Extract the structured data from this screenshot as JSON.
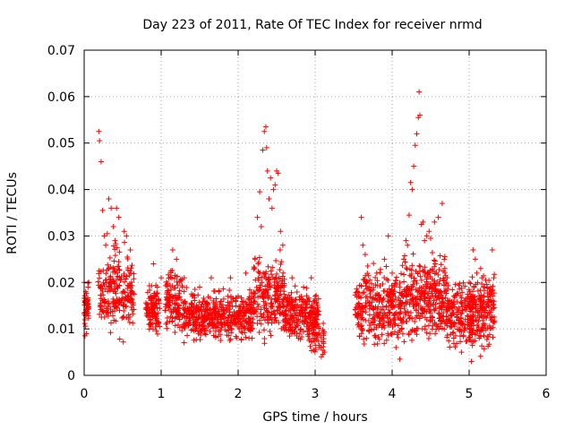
{
  "chart_data": {
    "type": "scatter",
    "title": "Day 223 of 2011, Rate Of TEC Index for receiver nrmd",
    "xlabel": "GPS time / hours",
    "ylabel": "ROTI / TECUs",
    "xlim": [
      0,
      6
    ],
    "ylim": [
      0,
      0.07
    ],
    "xticks": [
      0,
      1,
      2,
      3,
      4,
      5,
      6
    ],
    "yticks": [
      0,
      0.01,
      0.02,
      0.03,
      0.04,
      0.05,
      0.06,
      0.07
    ],
    "xtick_labels": [
      "0",
      "1",
      "2",
      "3",
      "4",
      "5",
      "6"
    ],
    "ytick_labels": [
      "0",
      "0.01",
      "0.02",
      "0.03",
      "0.04",
      "0.05",
      "0.06",
      "0.07"
    ],
    "grid": true,
    "marker": "+",
    "color": "#ff0000",
    "series": [
      {
        "name": "ROTI",
        "points": [
          [
            0.0,
            0.02
          ],
          [
            0.01,
            0.0085
          ],
          [
            0.02,
            0.018
          ],
          [
            0.03,
            0.009
          ],
          [
            0.03,
            0.016
          ],
          [
            0.04,
            0.015
          ],
          [
            0.05,
            0.019
          ],
          [
            0.05,
            0.0145
          ],
          [
            0.06,
            0.02
          ],
          [
            0.19,
            0.0525
          ],
          [
            0.2,
            0.0505
          ],
          [
            0.22,
            0.046
          ],
          [
            0.24,
            0.0355
          ],
          [
            0.26,
            0.03
          ],
          [
            0.28,
            0.028
          ],
          [
            0.3,
            0.0305
          ],
          [
            0.32,
            0.038
          ],
          [
            0.35,
            0.036
          ],
          [
            0.38,
            0.032
          ],
          [
            0.4,
            0.029
          ],
          [
            0.42,
            0.036
          ],
          [
            0.45,
            0.034
          ],
          [
            0.52,
            0.031
          ],
          [
            0.55,
            0.03
          ],
          [
            0.6,
            0.027
          ],
          [
            0.9,
            0.024
          ],
          [
            1.0,
            0.021
          ],
          [
            1.15,
            0.027
          ],
          [
            1.2,
            0.025
          ],
          [
            1.3,
            0.021
          ],
          [
            1.5,
            0.019
          ],
          [
            1.65,
            0.021
          ],
          [
            1.75,
            0.018
          ],
          [
            1.9,
            0.021
          ],
          [
            2.0,
            0.017
          ],
          [
            2.1,
            0.022
          ],
          [
            2.22,
            0.025
          ],
          [
            2.25,
            0.034
          ],
          [
            2.28,
            0.0395
          ],
          [
            2.3,
            0.032
          ],
          [
            2.32,
            0.0485
          ],
          [
            2.34,
            0.0525
          ],
          [
            2.36,
            0.0535
          ],
          [
            2.37,
            0.049
          ],
          [
            2.38,
            0.044
          ],
          [
            2.4,
            0.038
          ],
          [
            2.42,
            0.0425
          ],
          [
            2.44,
            0.036
          ],
          [
            2.46,
            0.04
          ],
          [
            2.48,
            0.041
          ],
          [
            2.5,
            0.044
          ],
          [
            2.52,
            0.0435
          ],
          [
            2.55,
            0.031
          ],
          [
            2.58,
            0.028
          ],
          [
            2.7,
            0.021
          ],
          [
            2.85,
            0.019
          ],
          [
            2.95,
            0.021
          ],
          [
            3.0,
            0.017
          ],
          [
            3.05,
            0.006
          ],
          [
            3.08,
            0.004
          ],
          [
            3.1,
            0.0045
          ],
          [
            3.12,
            0.005
          ],
          [
            3.55,
            0.018
          ],
          [
            3.6,
            0.034
          ],
          [
            3.62,
            0.028
          ],
          [
            3.65,
            0.026
          ],
          [
            3.7,
            0.019
          ],
          [
            3.8,
            0.022
          ],
          [
            3.9,
            0.025
          ],
          [
            3.95,
            0.03
          ],
          [
            4.0,
            0.022
          ],
          [
            4.05,
            0.006
          ],
          [
            4.1,
            0.0035
          ],
          [
            4.15,
            0.025
          ],
          [
            4.18,
            0.029
          ],
          [
            4.2,
            0.028
          ],
          [
            4.22,
            0.0345
          ],
          [
            4.24,
            0.0415
          ],
          [
            4.26,
            0.04
          ],
          [
            4.28,
            0.045
          ],
          [
            4.3,
            0.0495
          ],
          [
            4.32,
            0.052
          ],
          [
            4.34,
            0.0555
          ],
          [
            4.35,
            0.061
          ],
          [
            4.36,
            0.056
          ],
          [
            4.38,
            0.0325
          ],
          [
            4.4,
            0.033
          ],
          [
            4.42,
            0.029
          ],
          [
            4.45,
            0.03
          ],
          [
            4.48,
            0.031
          ],
          [
            4.5,
            0.0295
          ],
          [
            4.55,
            0.033
          ],
          [
            4.6,
            0.034
          ],
          [
            4.65,
            0.037
          ],
          [
            4.7,
            0.02
          ],
          [
            4.8,
            0.008
          ],
          [
            4.9,
            0.005
          ],
          [
            4.95,
            0.012
          ],
          [
            5.0,
            0.02
          ],
          [
            5.03,
            0.003
          ],
          [
            5.05,
            0.027
          ],
          [
            5.08,
            0.025
          ],
          [
            5.1,
            0.022
          ],
          [
            5.15,
            0.023
          ],
          [
            5.2,
            0.019
          ],
          [
            5.25,
            0.015
          ],
          [
            5.3,
            0.027
          ],
          [
            5.32,
            0.021
          ]
        ],
        "bands": [
          {
            "x": [
              0.0,
              0.06
            ],
            "y": [
              0.008,
              0.021
            ],
            "n": 40
          },
          {
            "x": [
              0.18,
              0.65
            ],
            "y": [
              0.006,
              0.03
            ],
            "n": 230
          },
          {
            "x": [
              0.8,
              0.98
            ],
            "y": [
              0.007,
              0.022
            ],
            "n": 110
          },
          {
            "x": [
              1.05,
              1.28
            ],
            "y": [
              0.007,
              0.025
            ],
            "n": 120
          },
          {
            "x": [
              1.28,
              2.2
            ],
            "y": [
              0.006,
              0.02
            ],
            "n": 480
          },
          {
            "x": [
              2.2,
              2.6
            ],
            "y": [
              0.006,
              0.028
            ],
            "n": 220
          },
          {
            "x": [
              2.6,
              3.05
            ],
            "y": [
              0.006,
              0.02
            ],
            "n": 260
          },
          {
            "x": [
              2.9,
              3.13
            ],
            "y": [
              0.004,
              0.012
            ],
            "n": 40
          },
          {
            "x": [
              3.52,
              4.15
            ],
            "y": [
              0.004,
              0.026
            ],
            "n": 320
          },
          {
            "x": [
              4.15,
              4.7
            ],
            "y": [
              0.004,
              0.03
            ],
            "n": 320
          },
          {
            "x": [
              4.7,
              5.05
            ],
            "y": [
              0.004,
              0.022
            ],
            "n": 180
          },
          {
            "x": [
              5.0,
              5.33
            ],
            "y": [
              0.003,
              0.024
            ],
            "n": 200
          }
        ]
      }
    ]
  }
}
